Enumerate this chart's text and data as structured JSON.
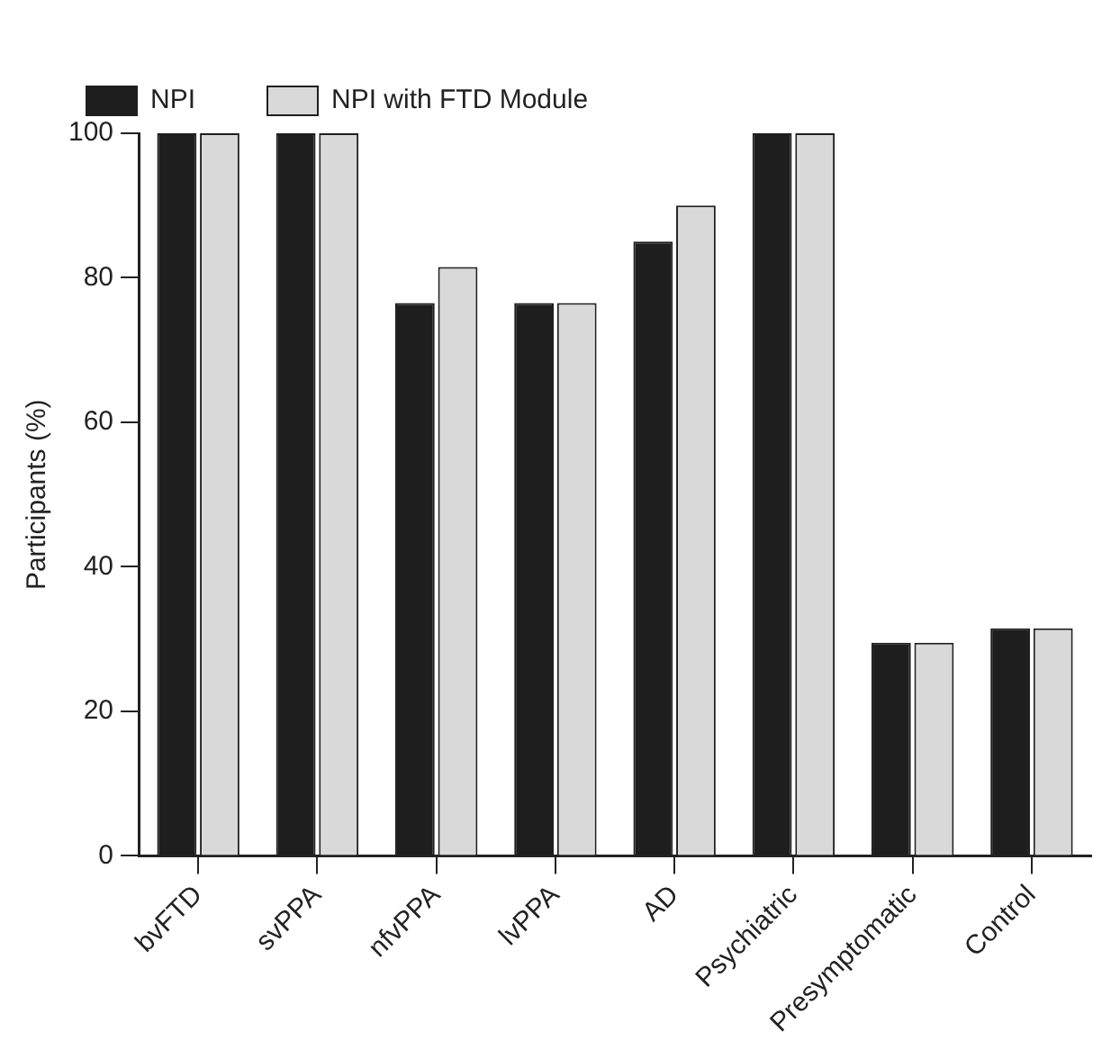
{
  "chart_data": {
    "type": "bar",
    "ylabel": "Participants (%)",
    "categories": [
      "bvFTD",
      "svPPA",
      "nfvPPA",
      "lvPPA",
      "AD",
      "Psychiatric",
      "Presymptomatic",
      "Control"
    ],
    "series": [
      {
        "name": "NPI",
        "color": "#1e1e1e",
        "values": [
          100,
          100,
          76.5,
          76.5,
          85,
          100,
          29.5,
          31.5
        ]
      },
      {
        "name": "NPI with FTD Module",
        "color": "#d9d9d9",
        "values": [
          100,
          100,
          81.5,
          76.5,
          90,
          100,
          29.5,
          31.5
        ]
      }
    ],
    "ylim": [
      0,
      100
    ],
    "yticks": [
      0,
      20,
      40,
      60,
      80,
      100
    ],
    "grid": false,
    "legend": "top left"
  }
}
